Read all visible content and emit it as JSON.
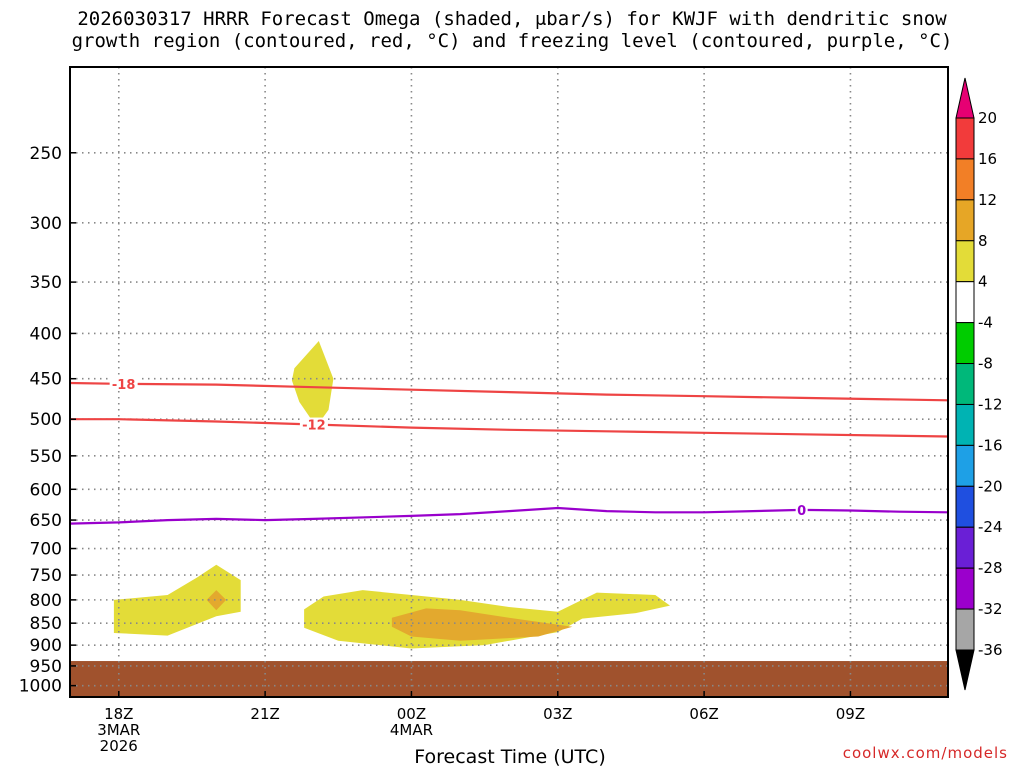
{
  "title_line1": "2026030317 HRRR Forecast Omega (shaded, μbar/s) for KWJF with dendritic snow",
  "title_line2": "growth region (contoured, red, °C) and freezing level (contoured, purple, °C)",
  "credit": "coolwx.com/models",
  "chart_data": {
    "type": "heatmap",
    "xlabel": "Forecast Time (UTC)",
    "ylabel": "",
    "x_range_hours": [
      -1,
      17
    ],
    "y_range_hpa": [
      200,
      1030
    ],
    "y_scale": "log",
    "x_ticks": [
      {
        "h": 0,
        "lines": [
          "18Z",
          "3MAR",
          "2026"
        ]
      },
      {
        "h": 3,
        "lines": [
          "21Z"
        ]
      },
      {
        "h": 6,
        "lines": [
          "00Z",
          "4MAR"
        ]
      },
      {
        "h": 9,
        "lines": [
          "03Z"
        ]
      },
      {
        "h": 12,
        "lines": [
          "06Z"
        ]
      },
      {
        "h": 15,
        "lines": [
          "09Z"
        ]
      }
    ],
    "y_ticks": [
      250,
      300,
      350,
      400,
      450,
      500,
      550,
      600,
      650,
      700,
      750,
      800,
      850,
      900,
      950,
      1000
    ],
    "grid": true,
    "terrain": {
      "surface_pressure_hpa": 938,
      "color": "#a0522d"
    },
    "omega_regions": [
      {
        "level": "4-8",
        "color": "#e3dc38",
        "points": [
          [
            -0.1,
            800
          ],
          [
            1,
            790
          ],
          [
            1.6,
            755
          ],
          [
            2,
            730
          ],
          [
            2.5,
            760
          ],
          [
            2.5,
            825
          ],
          [
            2,
            835
          ],
          [
            1,
            878
          ],
          [
            -0.1,
            872
          ]
        ]
      },
      {
        "level": "8-12",
        "color": "#e3a92e",
        "points": [
          [
            1.8,
            800
          ],
          [
            2,
            780
          ],
          [
            2.2,
            800
          ],
          [
            2,
            822
          ]
        ]
      },
      {
        "level": "4-8",
        "color": "#e3dc38",
        "points": [
          [
            3.6,
            438
          ],
          [
            4.1,
            408
          ],
          [
            4.4,
            450
          ],
          [
            4.3,
            488
          ],
          [
            4.05,
            510
          ],
          [
            3.7,
            478
          ],
          [
            3.55,
            452
          ]
        ]
      },
      {
        "level": "4-8",
        "color": "#e3dc38",
        "points": [
          [
            3.8,
            820
          ],
          [
            4.2,
            793
          ],
          [
            5,
            780
          ],
          [
            6,
            790
          ],
          [
            7,
            800
          ],
          [
            8,
            815
          ],
          [
            9,
            825
          ],
          [
            9.2,
            815
          ],
          [
            9.8,
            785
          ],
          [
            11,
            790
          ],
          [
            11.3,
            812
          ],
          [
            10.6,
            828
          ],
          [
            9.5,
            840
          ],
          [
            9,
            870
          ],
          [
            7.5,
            900
          ],
          [
            6,
            908
          ],
          [
            4.5,
            890
          ],
          [
            3.8,
            860
          ]
        ]
      },
      {
        "level": "8-12",
        "color": "#e3a92e",
        "points": [
          [
            5.6,
            838
          ],
          [
            6.3,
            818
          ],
          [
            7,
            822
          ],
          [
            8,
            838
          ],
          [
            9.3,
            858
          ],
          [
            8.6,
            880
          ],
          [
            7,
            890
          ],
          [
            6,
            880
          ],
          [
            5.6,
            858
          ]
        ]
      }
    ],
    "contours": [
      {
        "name": "-18C isotherm",
        "label": "-18",
        "color": "#ee4444",
        "label_h": 0.1,
        "points": [
          [
            -1,
            455
          ],
          [
            0,
            456
          ],
          [
            2,
            457
          ],
          [
            4,
            460
          ],
          [
            6,
            463
          ],
          [
            8,
            466
          ],
          [
            10,
            469
          ],
          [
            12,
            471
          ],
          [
            14,
            473
          ],
          [
            17,
            476
          ]
        ]
      },
      {
        "name": "-12C isotherm",
        "label": "-12",
        "color": "#ee4444",
        "label_h": 4,
        "points": [
          [
            -1,
            500
          ],
          [
            0,
            500
          ],
          [
            2,
            503
          ],
          [
            4,
            507
          ],
          [
            6,
            511
          ],
          [
            8,
            514
          ],
          [
            10,
            516
          ],
          [
            12,
            518
          ],
          [
            14,
            520
          ],
          [
            17,
            523
          ]
        ]
      },
      {
        "name": "0C freezing level",
        "label": "0",
        "color": "#9900cc",
        "label_h": 14,
        "points": [
          [
            -1,
            656
          ],
          [
            0,
            654
          ],
          [
            1,
            650
          ],
          [
            2,
            648
          ],
          [
            3,
            650
          ],
          [
            4,
            648
          ],
          [
            6,
            643
          ],
          [
            7,
            640
          ],
          [
            8,
            635
          ],
          [
            9,
            630
          ],
          [
            10,
            635
          ],
          [
            11,
            637
          ],
          [
            12,
            637
          ],
          [
            13,
            635
          ],
          [
            14,
            633
          ],
          [
            15,
            634
          ],
          [
            16,
            636
          ],
          [
            17,
            637
          ]
        ]
      }
    ],
    "colorbar": {
      "levels": [
        {
          "color": "#e60073"
        },
        {
          "color": "#f23b3b",
          "label": "20"
        },
        {
          "color": "#f27f26",
          "label": "16"
        },
        {
          "color": "#e6a626",
          "label": "12"
        },
        {
          "color": "#e3dc38",
          "label": "8"
        },
        {
          "color": "#ffffff",
          "label": "4"
        },
        {
          "color": "#00cc00",
          "label": "-4"
        },
        {
          "color": "#00b87a",
          "label": "-8"
        },
        {
          "color": "#00b3b3",
          "label": "-12"
        },
        {
          "color": "#1ea0e6",
          "label": "-16"
        },
        {
          "color": "#1f4fe0",
          "label": "-20"
        },
        {
          "color": "#6a1fd6",
          "label": "-24"
        },
        {
          "color": "#9b00cc",
          "label": "-28"
        },
        {
          "color": "#a6a6a6",
          "label": "-32"
        },
        {
          "color": "#000000",
          "label": "-36"
        }
      ]
    }
  }
}
